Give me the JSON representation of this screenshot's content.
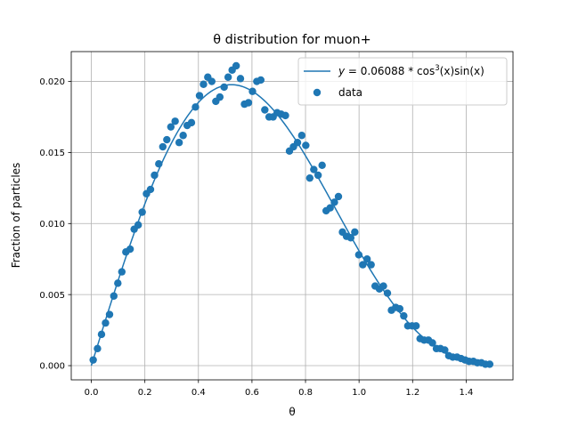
{
  "chart_data": {
    "type": "scatter",
    "title": "θ distribution for muon+",
    "xlabel": "θ",
    "ylabel": "Fraction of particles",
    "xlim": [
      -0.075,
      1.575
    ],
    "ylim": [
      -0.001,
      0.0221
    ],
    "xticks": [
      0.0,
      0.2,
      0.4,
      0.6,
      0.8,
      1.0,
      1.2,
      1.4
    ],
    "yticks": [
      0.0,
      0.005,
      0.01,
      0.015,
      0.02
    ],
    "xtick_labels": [
      "0.0",
      "0.2",
      "0.4",
      "0.6",
      "0.8",
      "1.0",
      "1.2",
      "1.4"
    ],
    "ytick_labels": [
      "0.000",
      "0.005",
      "0.010",
      "0.015",
      "0.020"
    ],
    "grid": true,
    "legend_position": "top-right",
    "fit": {
      "name": "y = 0.06088 * cos³(x)sin(x)",
      "name_prefix": "y",
      "name_mid": " = 0.06088 * cos",
      "name_sup": "3",
      "name_suffix": "(x)sin(x)",
      "amplitude": 0.06088,
      "x_range": [
        0.0,
        1.49
      ],
      "color": "#1f77b4"
    },
    "series": [
      {
        "name": "data",
        "color": "#1f77b4",
        "points": [
          [
            0.007,
            0.0004
          ],
          [
            0.023,
            0.0012
          ],
          [
            0.038,
            0.0022
          ],
          [
            0.053,
            0.003
          ],
          [
            0.068,
            0.0036
          ],
          [
            0.084,
            0.0049
          ],
          [
            0.099,
            0.0058
          ],
          [
            0.114,
            0.0066
          ],
          [
            0.129,
            0.008
          ],
          [
            0.145,
            0.0082
          ],
          [
            0.16,
            0.0096
          ],
          [
            0.175,
            0.0099
          ],
          [
            0.19,
            0.0108
          ],
          [
            0.206,
            0.0121
          ],
          [
            0.221,
            0.0124
          ],
          [
            0.236,
            0.0134
          ],
          [
            0.252,
            0.0142
          ],
          [
            0.267,
            0.0154
          ],
          [
            0.282,
            0.0159
          ],
          [
            0.297,
            0.0168
          ],
          [
            0.313,
            0.0172
          ],
          [
            0.328,
            0.0157
          ],
          [
            0.343,
            0.0162
          ],
          [
            0.358,
            0.0169
          ],
          [
            0.374,
            0.0171
          ],
          [
            0.389,
            0.0182
          ],
          [
            0.404,
            0.019
          ],
          [
            0.419,
            0.0198
          ],
          [
            0.435,
            0.0203
          ],
          [
            0.45,
            0.02
          ],
          [
            0.465,
            0.0186
          ],
          [
            0.48,
            0.0189
          ],
          [
            0.496,
            0.0196
          ],
          [
            0.511,
            0.0203
          ],
          [
            0.526,
            0.0208
          ],
          [
            0.541,
            0.0211
          ],
          [
            0.557,
            0.0202
          ],
          [
            0.572,
            0.0184
          ],
          [
            0.587,
            0.0185
          ],
          [
            0.602,
            0.0193
          ],
          [
            0.618,
            0.02
          ],
          [
            0.633,
            0.0201
          ],
          [
            0.648,
            0.018
          ],
          [
            0.664,
            0.0175
          ],
          [
            0.679,
            0.0175
          ],
          [
            0.694,
            0.0178
          ],
          [
            0.709,
            0.0177
          ],
          [
            0.725,
            0.0176
          ],
          [
            0.74,
            0.0151
          ],
          [
            0.755,
            0.0154
          ],
          [
            0.77,
            0.0157
          ],
          [
            0.786,
            0.0162
          ],
          [
            0.801,
            0.0155
          ],
          [
            0.816,
            0.0132
          ],
          [
            0.831,
            0.0138
          ],
          [
            0.847,
            0.0134
          ],
          [
            0.862,
            0.0141
          ],
          [
            0.877,
            0.0109
          ],
          [
            0.892,
            0.0111
          ],
          [
            0.908,
            0.0115
          ],
          [
            0.923,
            0.0119
          ],
          [
            0.938,
            0.0094
          ],
          [
            0.953,
            0.0091
          ],
          [
            0.969,
            0.009
          ],
          [
            0.984,
            0.0094
          ],
          [
            0.999,
            0.0078
          ],
          [
            1.014,
            0.0071
          ],
          [
            1.03,
            0.0075
          ],
          [
            1.045,
            0.0071
          ],
          [
            1.06,
            0.0056
          ],
          [
            1.076,
            0.0054
          ],
          [
            1.091,
            0.0056
          ],
          [
            1.106,
            0.0051
          ],
          [
            1.121,
            0.0039
          ],
          [
            1.137,
            0.0041
          ],
          [
            1.152,
            0.004
          ],
          [
            1.167,
            0.0035
          ],
          [
            1.182,
            0.0028
          ],
          [
            1.198,
            0.0028
          ],
          [
            1.213,
            0.0028
          ],
          [
            1.228,
            0.0019
          ],
          [
            1.243,
            0.0018
          ],
          [
            1.259,
            0.0018
          ],
          [
            1.274,
            0.0016
          ],
          [
            1.289,
            0.0012
          ],
          [
            1.304,
            0.0012
          ],
          [
            1.32,
            0.0011
          ],
          [
            1.335,
            0.0007
          ],
          [
            1.35,
            0.0006
          ],
          [
            1.366,
            0.0006
          ],
          [
            1.381,
            0.0005
          ],
          [
            1.396,
            0.0004
          ],
          [
            1.411,
            0.0003
          ],
          [
            1.427,
            0.0003
          ],
          [
            1.442,
            0.0002
          ],
          [
            1.457,
            0.0002
          ],
          [
            1.472,
            0.0001
          ],
          [
            1.488,
            0.0001
          ]
        ]
      }
    ]
  }
}
